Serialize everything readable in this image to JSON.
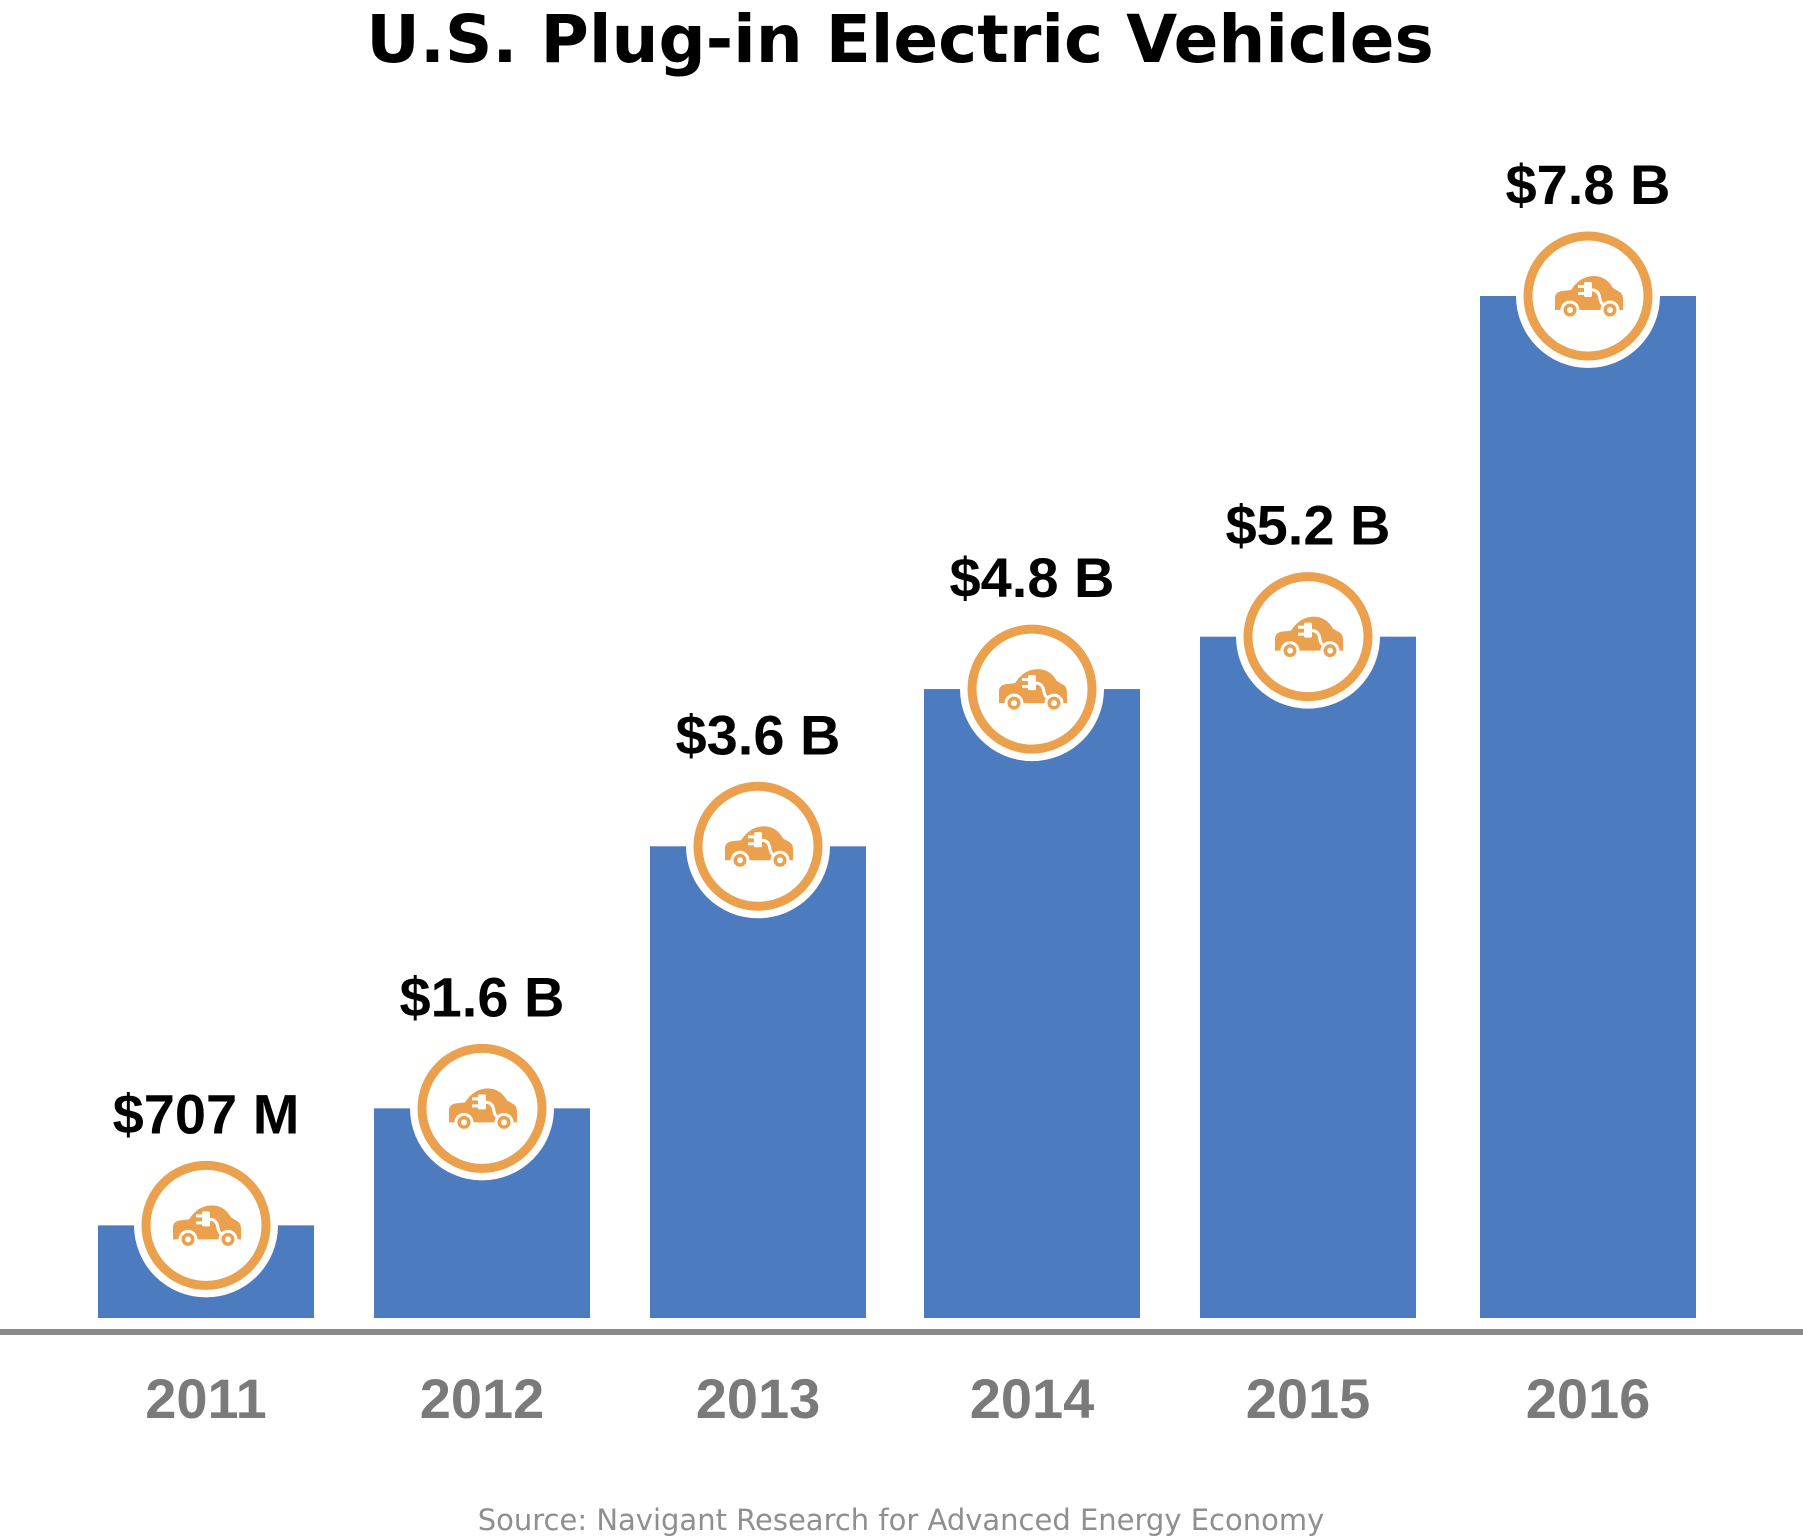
{
  "colors": {
    "bar": "#4c7bbf",
    "accent": "#eba04e",
    "axis": "#8a8a8a",
    "year_text": "#7a7a7a",
    "value_text": "#000000",
    "source_text": "#8f8f8f"
  },
  "icon": "electric-car-icon",
  "chart_data": {
    "type": "bar",
    "title": "U.S. Plug-in Electric Vehicles",
    "xlabel": "",
    "ylabel": "",
    "unit": "billion USD",
    "ylim": [
      0,
      8.2
    ],
    "categories": [
      "2011",
      "2012",
      "2013",
      "2014",
      "2015",
      "2016"
    ],
    "values": [
      0.707,
      1.6,
      3.6,
      4.8,
      5.2,
      7.8
    ],
    "data_labels": [
      "$707 M",
      "$1.6 B",
      "$3.6 B",
      "$4.8 B",
      "$5.2 B",
      "$7.8 B"
    ],
    "grid": false,
    "legend": "none"
  },
  "source": "Source: Navigant Research for Advanced Energy Economy"
}
